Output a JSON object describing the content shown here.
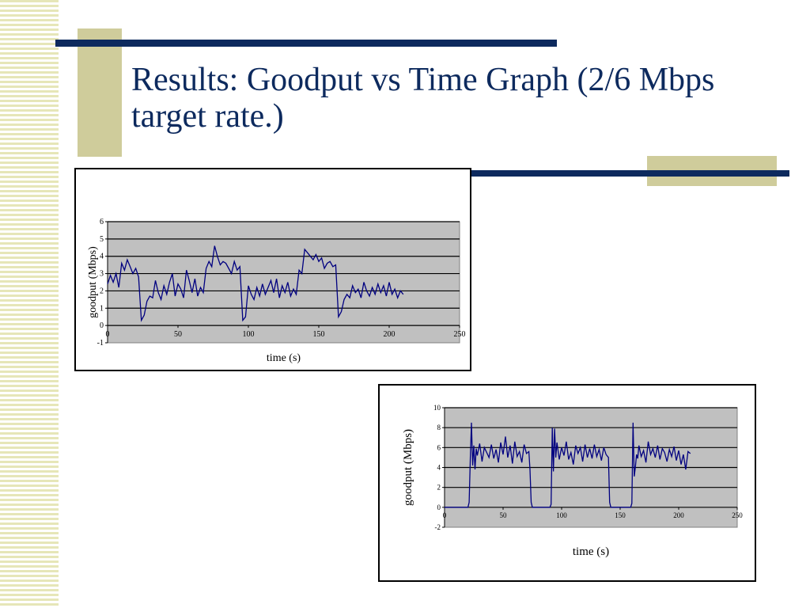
{
  "slide": {
    "title": "Results: Goodput vs Time Graph (2/6 Mbps target rate.)"
  },
  "colors": {
    "title": "#0d2a5e",
    "accent_bar": "#0d2a5e",
    "accent_box": "#cfcc9b",
    "plot_bg": "#c0c0c0",
    "series_line": "#000080"
  },
  "chart_data": [
    {
      "type": "line",
      "title": "",
      "xlabel": "time (s)",
      "ylabel": "goodput (Mbps)",
      "xlim": [
        0,
        250
      ],
      "ylim": [
        -1,
        6
      ],
      "xticks": [
        0,
        50,
        100,
        150,
        200,
        250
      ],
      "yticks": [
        -1,
        0,
        1,
        2,
        3,
        4,
        5,
        6
      ],
      "grid": true,
      "series": [
        {
          "values_x": [
            0,
            2,
            4,
            6,
            8,
            10,
            12,
            14,
            16,
            18,
            20,
            22,
            24,
            26,
            28,
            30,
            32,
            34,
            36,
            38,
            40,
            42,
            44,
            46,
            48,
            50,
            52,
            54,
            56,
            58,
            60,
            62,
            64,
            66,
            68,
            70,
            72,
            74,
            76,
            78,
            80,
            82,
            84,
            86,
            88,
            90,
            92,
            94,
            96,
            98,
            100,
            102,
            104,
            106,
            108,
            110,
            112,
            114,
            116,
            118,
            120,
            122,
            124,
            126,
            128,
            130,
            132,
            134,
            136,
            138,
            140,
            142,
            144,
            146,
            148,
            150,
            152,
            154,
            156,
            158,
            160,
            162,
            164,
            166,
            168,
            170,
            172,
            174,
            176,
            178,
            180,
            182,
            184,
            186,
            188,
            190,
            192,
            194,
            196,
            198,
            200,
            202,
            204,
            206,
            208,
            210
          ],
          "values_y": [
            2.4,
            2.9,
            2.5,
            3.0,
            2.2,
            3.6,
            3.2,
            3.8,
            3.4,
            3.0,
            3.3,
            2.8,
            0.3,
            0.6,
            1.4,
            1.7,
            1.6,
            2.6,
            1.9,
            1.5,
            2.3,
            1.8,
            2.5,
            3.0,
            1.7,
            2.4,
            2.1,
            1.6,
            3.2,
            2.6,
            1.9,
            2.7,
            1.7,
            2.2,
            1.9,
            3.3,
            3.7,
            3.4,
            4.6,
            4.0,
            3.5,
            3.7,
            3.6,
            3.3,
            3.0,
            3.7,
            3.2,
            3.4,
            0.3,
            0.5,
            2.3,
            1.8,
            1.5,
            2.2,
            1.7,
            2.4,
            1.8,
            2.2,
            2.6,
            1.9,
            2.7,
            1.6,
            2.3,
            1.9,
            2.5,
            1.7,
            2.1,
            1.8,
            3.2,
            3.0,
            4.4,
            4.2,
            4.0,
            3.8,
            4.1,
            3.7,
            3.9,
            3.3,
            3.6,
            3.7,
            3.4,
            3.5,
            0.5,
            0.8,
            1.5,
            1.8,
            1.6,
            2.3,
            1.9,
            2.1,
            1.6,
            2.5,
            2.0,
            1.7,
            2.2,
            1.8,
            2.4,
            1.9,
            2.3,
            1.7,
            2.5,
            1.8,
            2.1,
            1.6,
            2.0,
            1.8
          ]
        }
      ]
    },
    {
      "type": "line",
      "title": "",
      "xlabel": "time (s)",
      "ylabel": "goodput (Mbps)",
      "xlim": [
        0,
        250
      ],
      "ylim": [
        -2,
        10
      ],
      "xticks": [
        0,
        50,
        100,
        150,
        200,
        250
      ],
      "yticks": [
        -2,
        0,
        2,
        4,
        6,
        8,
        10
      ],
      "grid": true,
      "series": [
        {
          "values_x": [
            0,
            5,
            10,
            15,
            20,
            21,
            22,
            23,
            24,
            25,
            26,
            27,
            28,
            30,
            32,
            34,
            36,
            38,
            40,
            42,
            44,
            46,
            48,
            50,
            52,
            54,
            56,
            58,
            60,
            62,
            64,
            66,
            68,
            70,
            72,
            73,
            74,
            75,
            78,
            81,
            84,
            87,
            90,
            91,
            92,
            93,
            94,
            95,
            96,
            98,
            100,
            102,
            104,
            106,
            108,
            110,
            112,
            114,
            116,
            118,
            120,
            122,
            124,
            126,
            128,
            130,
            132,
            134,
            136,
            138,
            140,
            141,
            142,
            143,
            144,
            147,
            150,
            153,
            156,
            159,
            160,
            161,
            162,
            163,
            164,
            165,
            166,
            168,
            170,
            172,
            174,
            176,
            178,
            180,
            182,
            184,
            186,
            188,
            190,
            192,
            194,
            196,
            198,
            200,
            202,
            204,
            206,
            208,
            210
          ],
          "values_y": [
            0,
            0,
            0,
            0,
            0,
            0.5,
            5.0,
            8.5,
            4.2,
            6.2,
            3.8,
            5.9,
            5.2,
            6.4,
            4.6,
            6.0,
            5.5,
            5.0,
            6.3,
            4.9,
            5.8,
            4.5,
            6.5,
            5.3,
            7.1,
            5.0,
            6.2,
            4.4,
            6.6,
            5.1,
            5.6,
            4.5,
            6.3,
            5.4,
            5.6,
            3.8,
            0.5,
            0,
            0,
            0,
            0,
            0,
            0,
            0.3,
            8.0,
            3.6,
            7.9,
            5.0,
            6.5,
            4.8,
            6.0,
            5.2,
            6.6,
            4.8,
            5.5,
            4.3,
            6.2,
            5.4,
            6.0,
            4.6,
            6.3,
            5.0,
            5.9,
            4.9,
            6.3,
            5.1,
            5.8,
            4.7,
            6.0,
            5.3,
            5.0,
            0.5,
            0,
            0,
            0,
            0,
            0,
            0,
            0,
            0,
            0.4,
            8.5,
            3.1,
            4.0,
            5.3,
            4.9,
            6.2,
            5.1,
            5.7,
            4.5,
            6.6,
            5.3,
            5.9,
            5.0,
            6.2,
            4.8,
            5.9,
            5.5,
            4.6,
            5.8,
            5.1,
            6.1,
            4.7,
            5.7,
            4.3,
            5.3,
            3.8,
            5.6,
            5.4
          ]
        }
      ]
    }
  ]
}
